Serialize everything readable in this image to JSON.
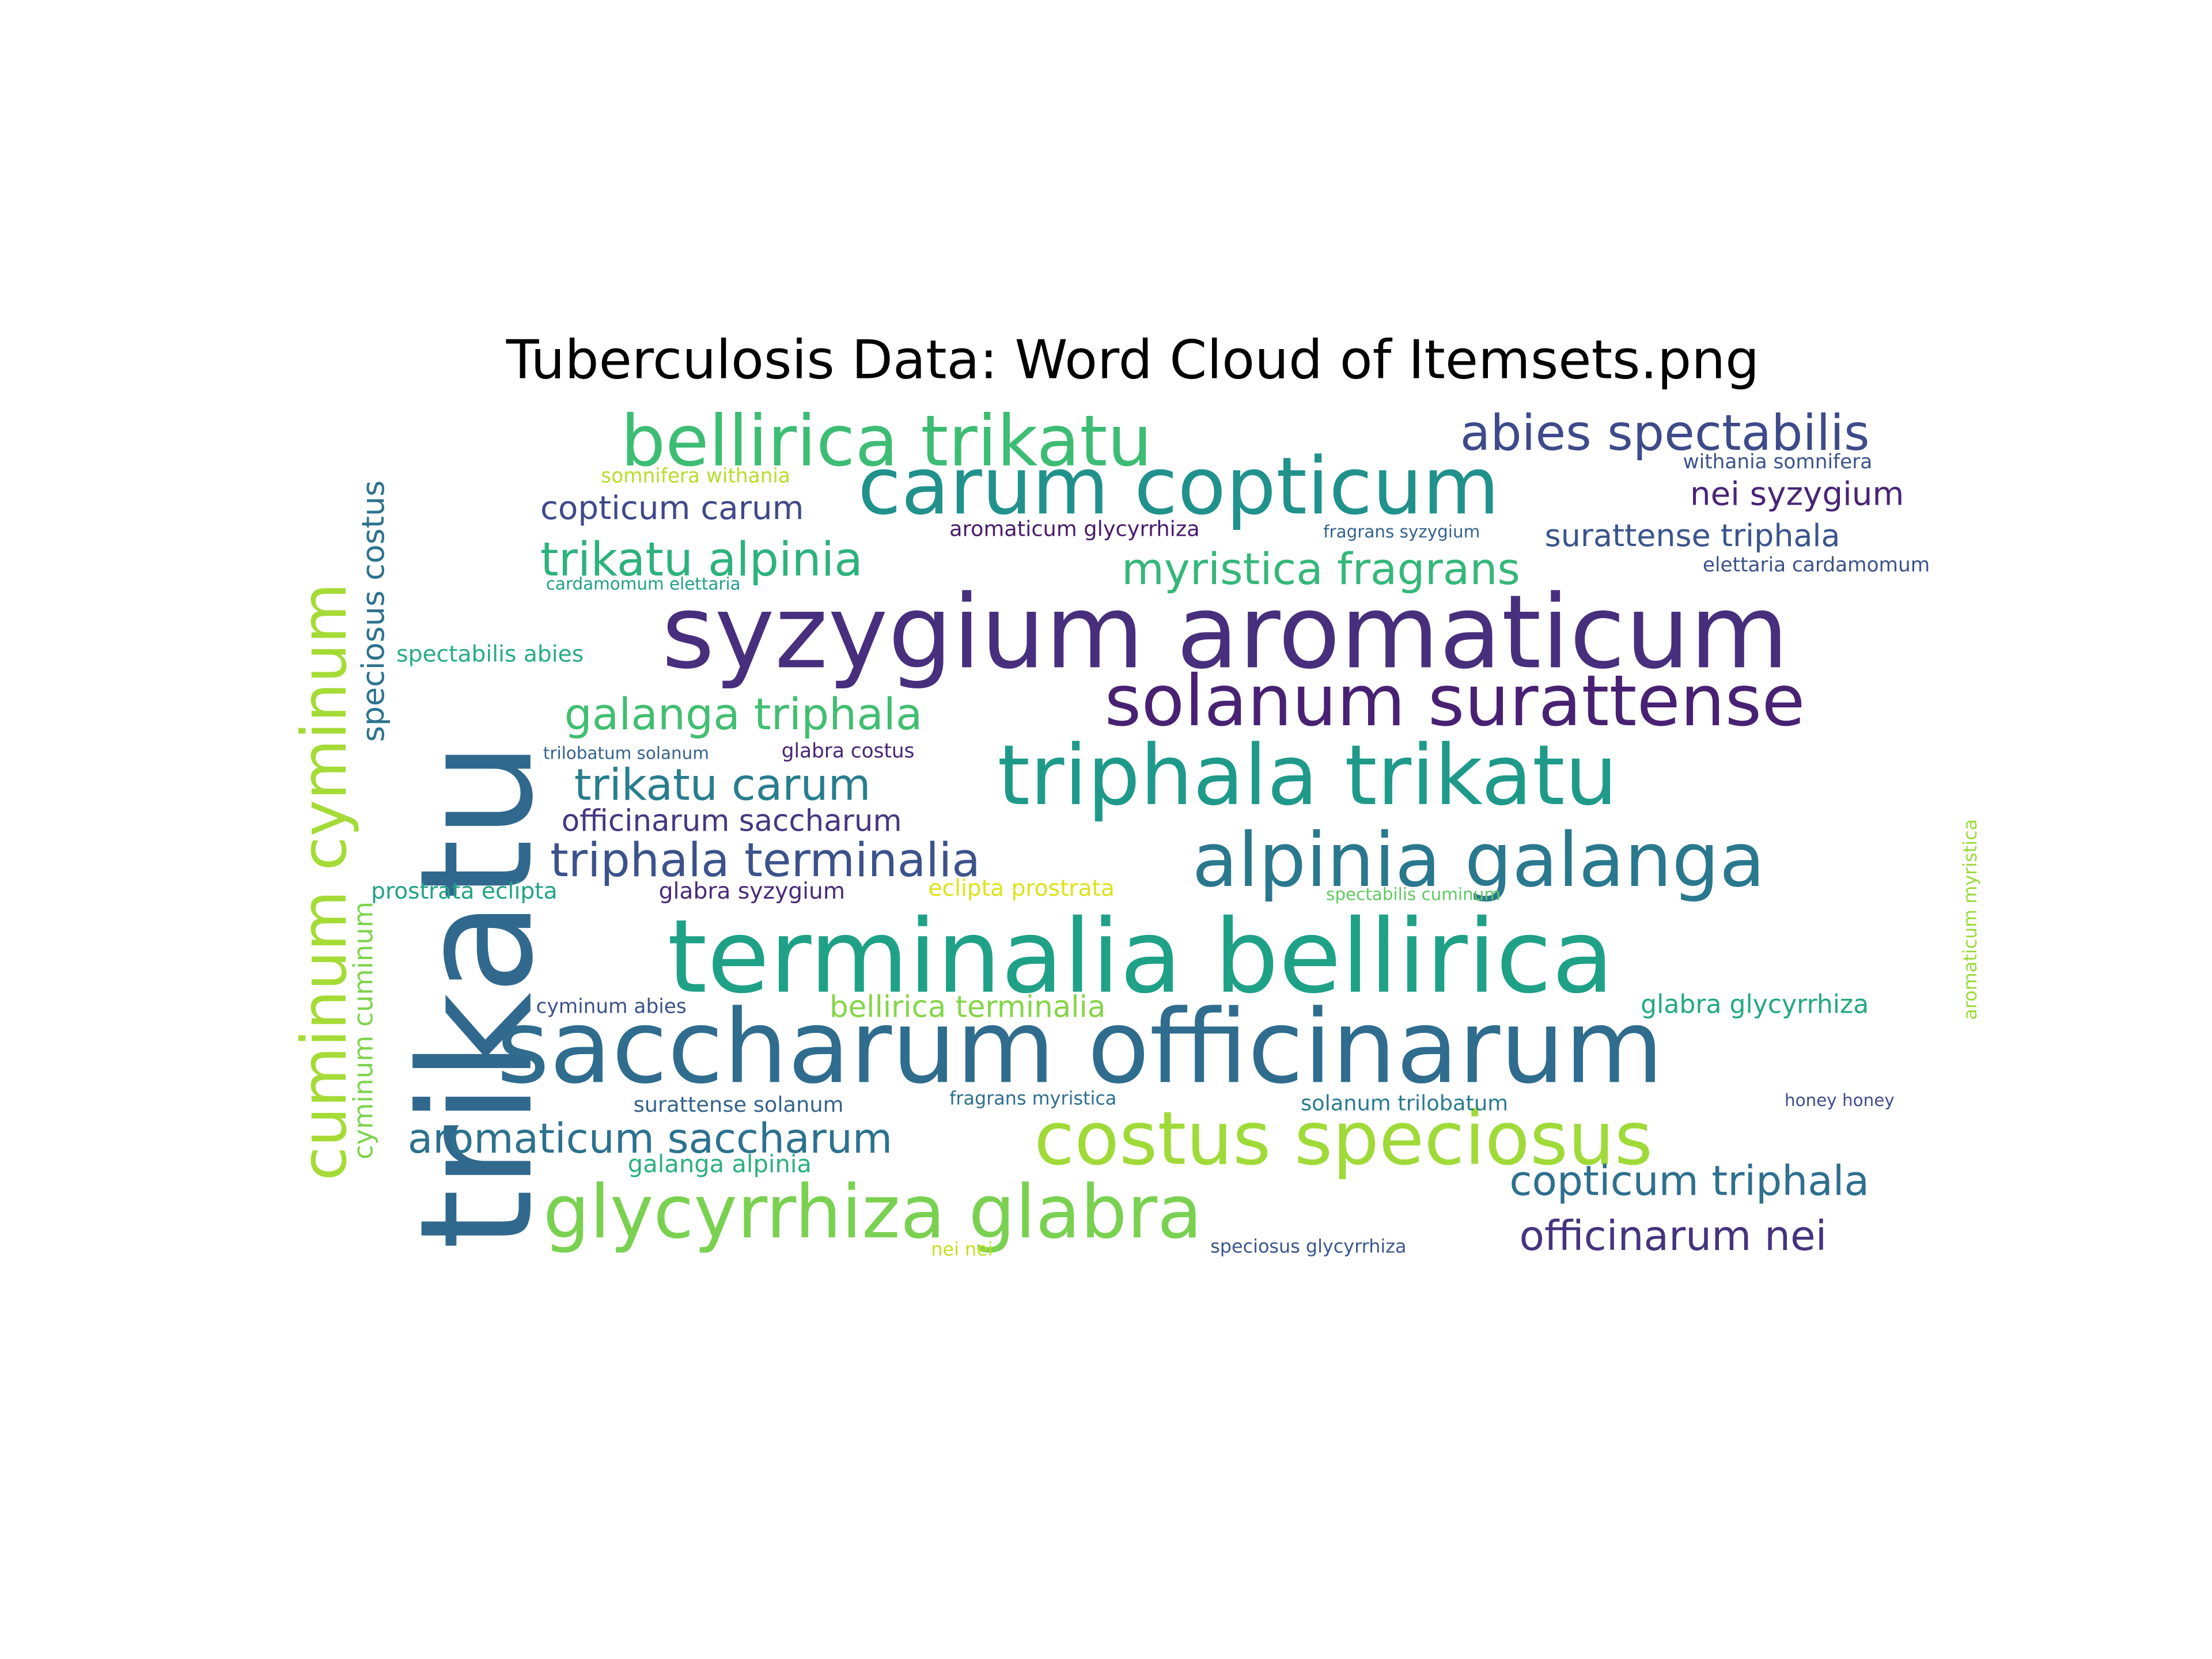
{
  "title": "Tuberculosis Data: Word Cloud of Itemsets.png",
  "words": [
    {
      "text": "trikatu",
      "color": "#31688e"
    },
    {
      "text": "syzygium aromaticum",
      "color": "#472f7d"
    },
    {
      "text": "saccharum officinarum",
      "color": "#2f6c8e"
    },
    {
      "text": "terminalia bellirica",
      "color": "#1fa187"
    },
    {
      "text": "triphala trikatu",
      "color": "#1f9a8a"
    },
    {
      "text": "carum copticum",
      "color": "#21918c"
    },
    {
      "text": "alpinia galanga",
      "color": "#2a788e"
    },
    {
      "text": "solanum surattense",
      "color": "#482173"
    },
    {
      "text": "costus speciosus",
      "color": "#a0da39"
    },
    {
      "text": "glycyrrhiza glabra",
      "color": "#7ad151"
    },
    {
      "text": "bellirica trikatu",
      "color": "#3dbc74"
    },
    {
      "text": "cuminum cyminum",
      "color": "#a5db36"
    },
    {
      "text": "abies spectabilis",
      "color": "#3e4a89"
    },
    {
      "text": "myristica fragrans",
      "color": "#35b779"
    },
    {
      "text": "trikatu alpinia",
      "color": "#2db27d"
    },
    {
      "text": "galanga triphala",
      "color": "#42be71"
    },
    {
      "text": "trikatu carum",
      "color": "#287d8e"
    },
    {
      "text": "triphala terminalia",
      "color": "#3b528b"
    },
    {
      "text": "aromaticum saccharum",
      "color": "#2c728e"
    },
    {
      "text": "copticum triphala",
      "color": "#2e6f8e"
    },
    {
      "text": "officinarum nei",
      "color": "#46337e"
    },
    {
      "text": "copticum carum",
      "color": "#3e4989"
    },
    {
      "text": "nei syzygium",
      "color": "#482475"
    },
    {
      "text": "surattense triphala",
      "color": "#3a548c"
    },
    {
      "text": "officinarum saccharum",
      "color": "#453781"
    },
    {
      "text": "speciosus costus",
      "color": "#2c728e"
    },
    {
      "text": "cyminum cuminum",
      "color": "#7fd34e"
    },
    {
      "text": "bellirica terminalia",
      "color": "#86d549"
    },
    {
      "text": "glabra glycyrrhiza",
      "color": "#22a884"
    },
    {
      "text": "galanga alpinia",
      "color": "#2ab07f"
    },
    {
      "text": "spectabilis abies",
      "color": "#26ad81"
    },
    {
      "text": "prostrata eclipta",
      "color": "#20a386"
    },
    {
      "text": "glabra syzygium",
      "color": "#482979"
    },
    {
      "text": "eclipta prostrata",
      "color": "#dde318"
    },
    {
      "text": "somnifera withania",
      "color": "#b5de2b"
    },
    {
      "text": "withania somnifera",
      "color": "#3b528b"
    },
    {
      "text": "aromaticum glycyrrhiza",
      "color": "#481a6c"
    },
    {
      "text": "fragrans syzygium",
      "color": "#33638d"
    },
    {
      "text": "elettaria cardamomum",
      "color": "#3b528b"
    },
    {
      "text": "cardamomum elettaria",
      "color": "#1fa088"
    },
    {
      "text": "trilobatum solanum",
      "color": "#34618d"
    },
    {
      "text": "glabra costus",
      "color": "#482677"
    },
    {
      "text": "spectabilis cuminum",
      "color": "#5ec962"
    },
    {
      "text": "aromaticum myristica",
      "color": "#9bd93c"
    },
    {
      "text": "cyminum abies",
      "color": "#3b528b"
    },
    {
      "text": "surattense solanum",
      "color": "#33638d"
    },
    {
      "text": "fragrans myristica",
      "color": "#2d708e"
    },
    {
      "text": "solanum trilobatum",
      "color": "#297b8e"
    },
    {
      "text": "honey honey",
      "color": "#3e4c8a"
    },
    {
      "text": "speciosus glycyrrhiza",
      "color": "#39568c"
    },
    {
      "text": "nei nei",
      "color": "#c2df23"
    }
  ]
}
